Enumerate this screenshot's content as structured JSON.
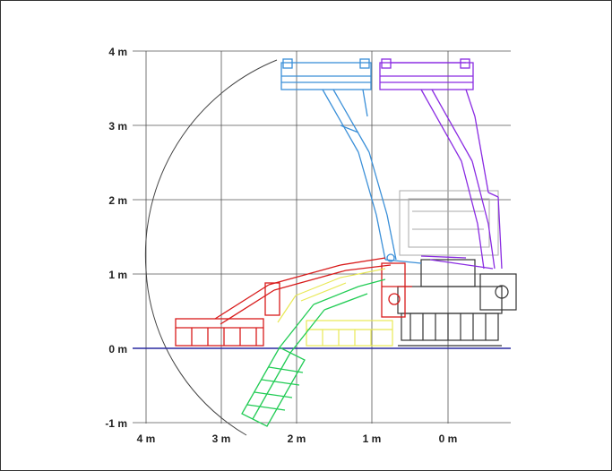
{
  "diagram": {
    "y_axis_ticks": [
      "4 m",
      "3 m",
      "2 m",
      "1 m",
      "0 m",
      "-1 m"
    ],
    "x_axis_ticks": [
      "4 m",
      "3 m",
      "2 m",
      "1 m",
      "0 m"
    ],
    "colors": {
      "grid": "#555555",
      "reach_arc": "#444444",
      "ground_line": "#2a2aa0",
      "boom_blue": "#3a8fd8",
      "boom_purple": "#8a2be2",
      "boom_red": "#d81b1b",
      "boom_green": "#22cc55",
      "boom_yellow": "#e8e855",
      "chassis": "#333333",
      "chassis_faded": "#aaaaaa"
    }
  }
}
